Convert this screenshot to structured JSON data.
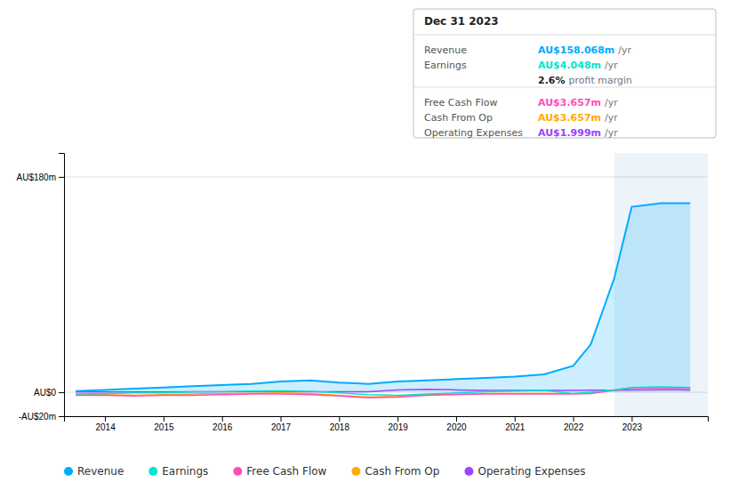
{
  "chart_data": {
    "type": "line",
    "x": [
      2013.5,
      2014,
      2014.5,
      2015,
      2015.5,
      2016,
      2016.5,
      2017,
      2017.5,
      2018,
      2018.3,
      2018.5,
      2019,
      2019.5,
      2020,
      2020.5,
      2021,
      2021.5,
      2022,
      2022.3,
      2022.7,
      2023,
      2023.5,
      2024
    ],
    "series": [
      {
        "name": "Revenue",
        "type": "area",
        "color": "#00aaff",
        "values": [
          1,
          2,
          3,
          4,
          5,
          6,
          7,
          9,
          10,
          8,
          7.5,
          7,
          9,
          10,
          11,
          12,
          13,
          15,
          22,
          40,
          95,
          155,
          158,
          158
        ]
      },
      {
        "name": "Earnings",
        "color": "#00e5cc",
        "values": [
          -1.5,
          -1,
          -0.5,
          -0.5,
          0.2,
          0.5,
          1,
          1.2,
          0.8,
          -0.5,
          -1.5,
          -2,
          -2.5,
          -1.5,
          -0.5,
          0.5,
          1,
          1.5,
          -1,
          0,
          2,
          4,
          4.5,
          4
        ]
      },
      {
        "name": "Free Cash Flow",
        "color": "#ff4db8",
        "values": [
          -2.5,
          -2.5,
          -3,
          -2.5,
          -2.5,
          -2,
          -1.5,
          -1.5,
          -2,
          -3,
          -4,
          -4.5,
          -4,
          -2.5,
          -2,
          -1.5,
          -1.5,
          -1.5,
          -1.5,
          -1,
          1.5,
          3.5,
          3.7,
          3.5
        ]
      },
      {
        "name": "Cash From Op",
        "color": "#ffaa00",
        "values": [
          -2,
          -2,
          -2.5,
          -2,
          -1.5,
          -1,
          -1,
          -0.5,
          -1,
          -2.5,
          -3.5,
          -4,
          -3.5,
          -2,
          -1.5,
          -1,
          -1,
          -1,
          -1,
          -0.5,
          2,
          3.7,
          4,
          3.5
        ]
      },
      {
        "name": "Operating Expenses",
        "color": "#9944ff",
        "values": [
          0.2,
          0.2,
          0.3,
          0.3,
          0.4,
          0.5,
          0.5,
          0.5,
          0.5,
          0.5,
          0.5,
          0.5,
          2,
          2.5,
          2,
          1.5,
          1.5,
          1.5,
          1.5,
          1.7,
          1.8,
          2,
          2.1,
          2
        ]
      }
    ],
    "xlim": [
      2013.3,
      2024.3
    ],
    "xticks": [
      2014,
      2015,
      2016,
      2017,
      2018,
      2019,
      2020,
      2021,
      2022,
      2023
    ],
    "ylim": [
      -20,
      200
    ],
    "yticks": [
      {
        "value": -20,
        "label": "-AU$20m"
      },
      {
        "value": 0,
        "label": "AU$0"
      },
      {
        "value": 180,
        "label": "AU$180m"
      }
    ],
    "grid": true,
    "legend": "bottom",
    "highlight": [
      2022.7,
      2024.3
    ],
    "info_box": {
      "title": "Dec 31 2023",
      "rows": [
        {
          "label": "Revenue",
          "value": "AU$158.068m",
          "suffix": "/yr",
          "color": "#00aaff"
        },
        {
          "label": "Earnings",
          "value": "AU$4.048m",
          "suffix": "/yr",
          "color": "#00e5cc"
        },
        {
          "value": "2.6%",
          "suffix": "profit margin"
        },
        {
          "label": "Free Cash Flow",
          "value": "AU$3.657m",
          "suffix": "/yr",
          "color": "#ff4db8"
        },
        {
          "label": "Cash From Op",
          "value": "AU$3.657m",
          "suffix": "/yr",
          "color": "#ffaa00"
        },
        {
          "label": "Operating Expenses",
          "value": "AU$1.999m",
          "suffix": "/yr",
          "color": "#9944ff"
        }
      ]
    }
  }
}
